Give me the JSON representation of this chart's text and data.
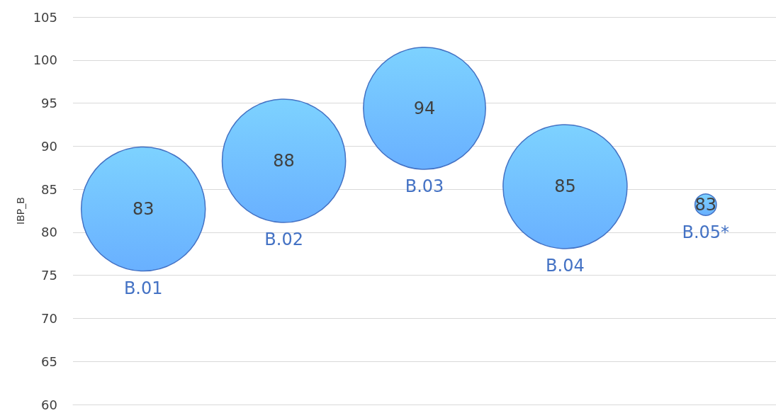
{
  "chart_data": {
    "type": "bubble",
    "ylabel": "IBP_B",
    "categories": [
      "B.01",
      "B.02",
      "B.03",
      "B.04",
      "B.05*"
    ],
    "values": [
      82.7,
      88.3,
      94.4,
      85.3,
      83.2
    ],
    "sizes": [
      1,
      0.99,
      0.97,
      1,
      0.03
    ],
    "value_labels": [
      "83",
      "88",
      "94",
      "85",
      "83"
    ],
    "color": "#4472c4",
    "ylim": [
      60,
      105
    ],
    "yticks": [
      60,
      65,
      70,
      75,
      80,
      85,
      90,
      95,
      100,
      105
    ],
    "grid": "y",
    "tick_labels": "y"
  }
}
